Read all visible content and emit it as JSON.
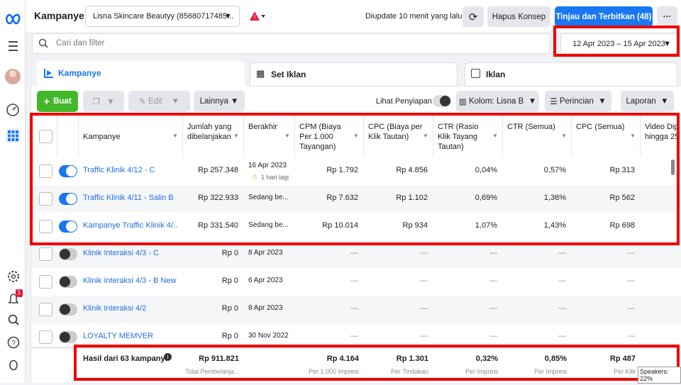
{
  "header": {
    "title": "Kampanye",
    "account": "Lisna Skincare Beautyy (85680717485...",
    "updated": "Diupdate 10 menit yang lalu",
    "discard": "Hapus Konsep",
    "publish": "Tinjau dan Terbitkan (48)",
    "date_range": "12 Apr 2023 – 15 Apr 2023",
    "search_placeholder": "Cari dan filter",
    "notification_count": "1"
  },
  "tabs": [
    "Kampanye",
    "Set Iklan",
    "Iklan"
  ],
  "toolbar": {
    "create": "Buat",
    "edit": "Edit",
    "more": "Lainnya",
    "view_setup": "Lihat Penyiapan",
    "columns": "Kolom: Lisna B",
    "breakdown": "Perincian",
    "reports": "Laporan"
  },
  "table": {
    "columns": [
      "Kampanye",
      "Jumlah yang dibelanjakan",
      "Berakhir",
      "CPM (Biaya Per 1.000 Tayangan)",
      "CPC (Biaya per Klik Tautan)",
      "CTR (Rasio Klik Tayang Tautan)",
      "CTR (Semua)",
      "CPC (Semua)",
      "Video Dip hingga 25"
    ],
    "rows": [
      {
        "active": true,
        "cells": [
          "Traffic Klinik 4/12 - C",
          "Rp 257.348",
          "16 Apr 2023",
          "Rp 1.792",
          "Rp 4.856",
          "0,04%",
          "0,57%",
          "Rp 313"
        ],
        "note": "1 hari lagi"
      },
      {
        "active": true,
        "cells": [
          "Traffic Klinik 4/11 - Salin B",
          "Rp 322.933",
          "Sedang be...",
          "Rp 7.632",
          "Rp 1.102",
          "0,69%",
          "1,36%",
          "Rp 562"
        ]
      },
      {
        "active": true,
        "cells": [
          "Kampanye Traffic Klinik 4/...",
          "Rp 331.540",
          "Sedang be...",
          "Rp 10.014",
          "Rp 934",
          "1,07%",
          "1,43%",
          "Rp 698"
        ]
      },
      {
        "active": false,
        "cells": [
          "Klinik Interaksi 4/3 - C",
          "Rp 0",
          "8 Apr 2023",
          "—",
          "—",
          "—",
          "—",
          "—"
        ]
      },
      {
        "active": false,
        "cells": [
          "Klinik Interaksi 4/3 - B New",
          "Rp 0",
          "6 Apr 2023",
          "—",
          "—",
          "—",
          "—",
          "—"
        ]
      },
      {
        "active": false,
        "cells": [
          "Klinik Interaksi 4/2",
          "Rp 0",
          "8 Apr 2023",
          "—",
          "—",
          "—",
          "—",
          "—"
        ]
      },
      {
        "active": false,
        "cells": [
          "LOYALTY MEMVER",
          "Rp 0",
          "30 Nov 2022",
          "—",
          "—",
          "—",
          "—",
          "—"
        ]
      }
    ],
    "totals": {
      "label": "Hasil dari 63 kampanye",
      "spent": {
        "value": "Rp 911.821",
        "sub": "Total Pembelanja..."
      },
      "cpm": {
        "value": "Rp 4.164",
        "sub": "Per 1.000 Impresi"
      },
      "cpc": {
        "value": "Rp 1.301",
        "sub": "Per Tindakan"
      },
      "ctr": {
        "value": "0,32%",
        "sub": "Per Impresi"
      },
      "ctr_all": {
        "value": "0,85%",
        "sub": "Per Impresi"
      },
      "cpc_all": {
        "value": "Rp 487",
        "sub": "Per Klik"
      }
    }
  },
  "overlay": "Speakers: 22%"
}
